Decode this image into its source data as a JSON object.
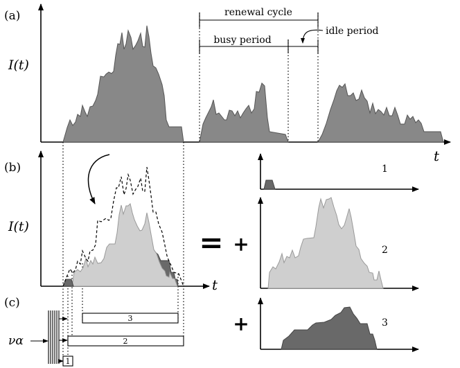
{
  "panels": {
    "a": "(a)",
    "b": "(b)",
    "c": "(c)"
  },
  "labels": {
    "intensity_a": "I(t)",
    "intensity_b": "I(t)",
    "time_a": "t",
    "time_b": "t",
    "renewal_cycle": "renewal cycle",
    "busy_period": "busy period",
    "idle_period": "idle period",
    "equals": "=",
    "plus_2": "+",
    "plus_3": "+",
    "arrival_rate": "να"
  },
  "components": {
    "c1": "1",
    "c2": "2",
    "c3": "3"
  },
  "boxes": {
    "b1": "1",
    "b2": "2",
    "b3": "3"
  },
  "colors": {
    "dark": "#888888",
    "light": "#cfcfcf",
    "darker": "#696969"
  }
}
